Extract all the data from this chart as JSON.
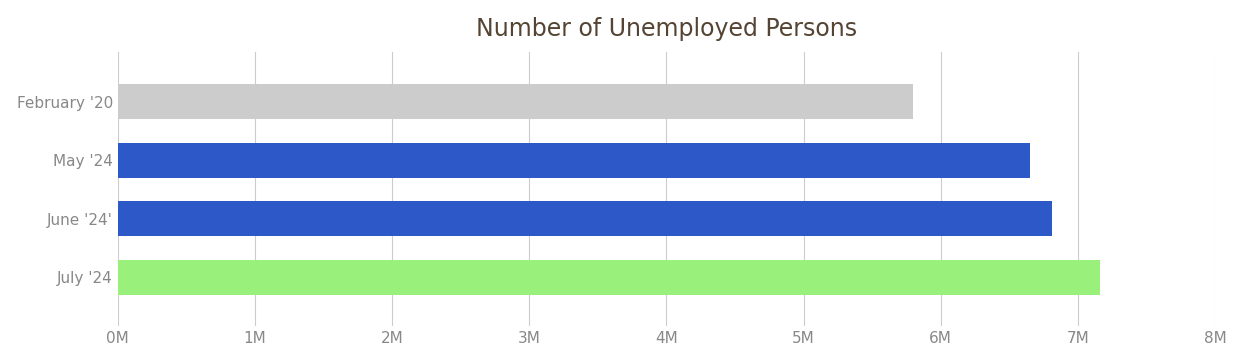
{
  "title": "Number of Unemployed Persons",
  "categories": [
    "February '20",
    "May '24",
    "June '24'",
    "July '24"
  ],
  "values": [
    5800000,
    6650000,
    6811000,
    7163000
  ],
  "bar_colors": [
    "#cccccc",
    "#2d58c8",
    "#2d58c8",
    "#99f07a"
  ],
  "xlim": [
    0,
    8000000
  ],
  "xtick_values": [
    0,
    1000000,
    2000000,
    3000000,
    4000000,
    5000000,
    6000000,
    7000000,
    8000000
  ],
  "xtick_labels": [
    "0M",
    "1M",
    "2M",
    "3M",
    "4M",
    "5M",
    "6M",
    "7M",
    "8M"
  ],
  "title_color": "#554433",
  "title_fontsize": 17,
  "label_fontsize": 11,
  "tick_color": "#888888",
  "background_color": "#ffffff",
  "grid_color": "#cccccc"
}
